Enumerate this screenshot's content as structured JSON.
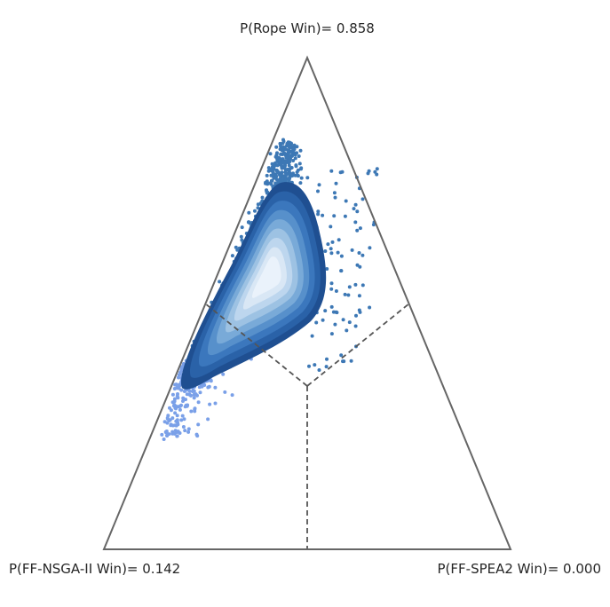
{
  "chart_data": {
    "type": "scatter",
    "subtype": "ternary-simplex-density",
    "vertices": {
      "top": {
        "name": "Rope",
        "label": "P(Rope Win)= 0.858",
        "probability": 0.858
      },
      "left": {
        "name": "FF-NSGA-II",
        "label": "P(FF-NSGA-II Win)= 0.142",
        "probability": 0.142
      },
      "right": {
        "name": "FF-SPEA2",
        "label": "P(FF-SPEA2 Win)= 0.000",
        "probability": 0.0
      }
    },
    "grid": false,
    "region_dividers": "dashed",
    "colors": {
      "frame": "#666666",
      "divider": "#555555",
      "rope_points": "#3d78b5",
      "nsga_points": "#7aa0e8",
      "density_levels": [
        "#1f4f91",
        "#2a62a8",
        "#3b77bd",
        "#5790cb",
        "#79aad8",
        "#9dc2e3",
        "#bdd6ee",
        "#d9e7f5",
        "#eaf2fb"
      ]
    }
  }
}
